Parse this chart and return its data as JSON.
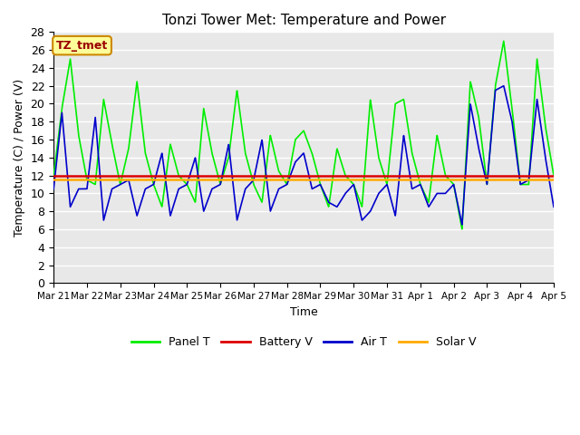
{
  "title": "Tonzi Tower Met: Temperature and Power",
  "xlabel": "Time",
  "ylabel": "Temperature (C) / Power (V)",
  "ylim": [
    0,
    28
  ],
  "yticks": [
    0,
    2,
    4,
    6,
    8,
    10,
    12,
    14,
    16,
    18,
    20,
    22,
    24,
    26,
    28
  ],
  "xlabels": [
    "Mar 21",
    "Mar 22",
    "Mar 23",
    "Mar 24",
    "Mar 25",
    "Mar 26",
    "Mar 27",
    "Mar 28",
    "Mar 29",
    "Mar 30",
    "Mar 31",
    "Apr 1",
    "Apr 2",
    "Apr 3",
    "Apr 4",
    "Apr 5"
  ],
  "bg_color": "#ffffff",
  "plot_bg": "#e8e8e8",
  "grid_color": "#ffffff",
  "annotation_text": "TZ_tmet",
  "annotation_bg": "#ffff99",
  "annotation_border": "#cc8800",
  "annotation_text_color": "#990000",
  "legend_labels": [
    "Panel T",
    "Battery V",
    "Air T",
    "Solar V"
  ],
  "legend_colors": [
    "#00ee00",
    "#dd0000",
    "#0000cc",
    "#ffaa00"
  ],
  "battery_v": 12.0,
  "solar_v": 11.6,
  "panel_t_x": [
    0.0,
    0.25,
    0.5,
    0.75,
    1.0,
    1.25,
    1.5,
    1.75,
    2.0,
    2.25,
    2.5,
    2.75,
    3.0,
    3.25,
    3.5,
    3.75,
    4.0,
    4.25,
    4.5,
    4.75,
    5.0,
    5.25,
    5.5,
    5.75,
    6.0,
    6.25,
    6.5,
    6.75,
    7.0,
    7.25,
    7.5,
    7.75,
    8.0,
    8.25,
    8.5,
    8.75,
    9.0,
    9.25,
    9.5,
    9.75,
    10.0,
    10.25,
    10.5,
    10.75,
    11.0,
    11.25,
    11.5,
    11.75,
    12.0,
    12.25,
    12.5,
    12.75,
    13.0,
    13.25,
    13.5,
    13.75,
    14.0,
    14.25,
    14.5,
    14.75,
    15.0
  ],
  "panel_t_y": [
    12.0,
    19.5,
    25.0,
    16.5,
    11.5,
    11.0,
    20.5,
    15.5,
    11.0,
    15.0,
    22.5,
    14.5,
    11.0,
    8.5,
    15.5,
    12.0,
    11.0,
    9.0,
    19.5,
    14.5,
    11.0,
    14.0,
    21.5,
    14.5,
    11.0,
    9.0,
    16.5,
    12.5,
    11.0,
    16.0,
    17.0,
    14.5,
    11.0,
    8.5,
    15.0,
    12.0,
    11.0,
    8.5,
    20.5,
    14.0,
    11.0,
    20.0,
    20.5,
    14.5,
    11.0,
    9.0,
    16.5,
    12.0,
    11.0,
    6.0,
    22.5,
    18.5,
    11.0,
    22.0,
    27.0,
    19.5,
    11.0,
    11.0,
    25.0,
    17.5,
    12.0
  ],
  "air_t_x": [
    0.0,
    0.25,
    0.5,
    0.75,
    1.0,
    1.25,
    1.5,
    1.75,
    2.0,
    2.25,
    2.5,
    2.75,
    3.0,
    3.25,
    3.5,
    3.75,
    4.0,
    4.25,
    4.5,
    4.75,
    5.0,
    5.25,
    5.5,
    5.75,
    6.0,
    6.25,
    6.5,
    6.75,
    7.0,
    7.25,
    7.5,
    7.75,
    8.0,
    8.25,
    8.5,
    8.75,
    9.0,
    9.25,
    9.5,
    9.75,
    10.0,
    10.25,
    10.5,
    10.75,
    11.0,
    11.25,
    11.5,
    11.75,
    12.0,
    12.25,
    12.5,
    12.75,
    13.0,
    13.25,
    13.5,
    13.75,
    14.0,
    14.25,
    14.5,
    14.75,
    15.0
  ],
  "air_t_y": [
    10.5,
    19.0,
    8.5,
    10.5,
    10.5,
    18.5,
    7.0,
    10.5,
    11.0,
    11.5,
    7.5,
    10.5,
    11.0,
    14.5,
    7.5,
    10.5,
    11.0,
    14.0,
    8.0,
    10.5,
    11.0,
    15.5,
    7.0,
    10.5,
    11.5,
    16.0,
    8.0,
    10.5,
    11.0,
    13.5,
    14.5,
    10.5,
    11.0,
    9.0,
    8.5,
    10.0,
    11.0,
    7.0,
    8.0,
    10.0,
    11.0,
    7.5,
    16.5,
    10.5,
    11.0,
    8.5,
    10.0,
    10.0,
    11.0,
    6.5,
    20.0,
    15.0,
    11.0,
    21.5,
    22.0,
    18.0,
    11.0,
    11.5,
    20.5,
    14.0,
    8.5
  ]
}
